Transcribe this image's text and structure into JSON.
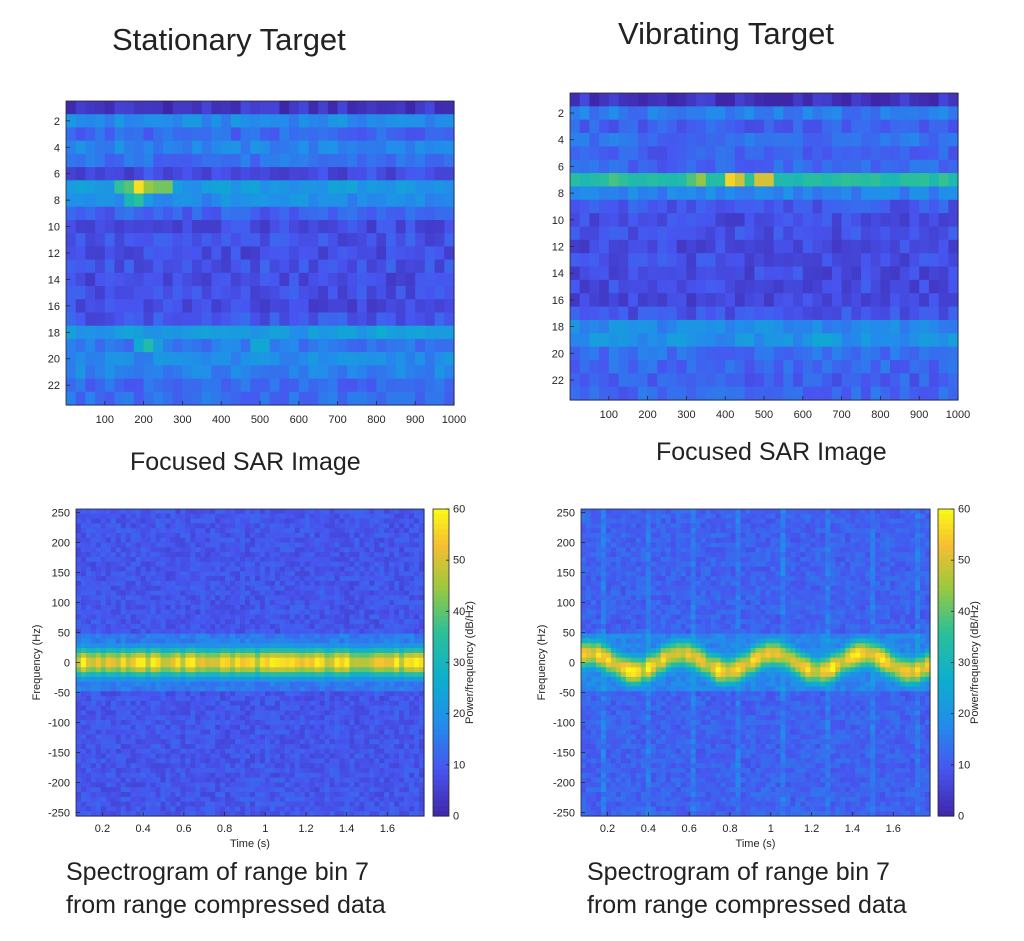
{
  "labels": {
    "left_title": "Stationary Target",
    "right_title": "Vibrating Target",
    "left_sar_caption": "Focused SAR Image",
    "right_sar_caption": "Focused SAR Image",
    "left_spec_caption_line1": "Spectrogram of range bin 7",
    "left_spec_caption_line2": "from range compressed data",
    "right_spec_caption_line1": "Spectrogram of range bin 7",
    "right_spec_caption_line2": "from range compressed data"
  },
  "colors": {
    "parula_low": "#3e26a8",
    "parula_mid": "#2db8a9",
    "parula_high": "#f9fb15"
  },
  "chart_data": [
    {
      "id": "sar-stationary",
      "type": "heatmap",
      "title": "Stationary Target",
      "xlim": [
        0,
        1000
      ],
      "ylim": [
        0.5,
        23.5
      ],
      "xticks": [
        100,
        200,
        300,
        400,
        500,
        600,
        700,
        800,
        900,
        1000
      ],
      "yticks": [
        2,
        4,
        6,
        8,
        10,
        12,
        14,
        16,
        18,
        20,
        22
      ],
      "rows": 23,
      "colorscale": "parula",
      "row_intensity": [
        0.05,
        0.3,
        0.2,
        0.28,
        0.22,
        0.12,
        0.35,
        0.3,
        0.18,
        0.12,
        0.14,
        0.12,
        0.14,
        0.12,
        0.13,
        0.12,
        0.15,
        0.35,
        0.25,
        0.3,
        0.28,
        0.2,
        0.22
      ],
      "peaks": [
        {
          "row": 7,
          "x": 190,
          "value": 0.95
        },
        {
          "row": 7,
          "x": 250,
          "value": 0.75
        },
        {
          "row": 7,
          "x": 150,
          "value": 0.65
        },
        {
          "row": 8,
          "x": 180,
          "value": 0.6
        },
        {
          "row": 19,
          "x": 210,
          "value": 0.55
        },
        {
          "row": 19,
          "x": 500,
          "value": 0.45
        },
        {
          "row": 18,
          "x": 820,
          "value": 0.45
        }
      ]
    },
    {
      "id": "sar-vibrating",
      "type": "heatmap",
      "title": "Vibrating Target",
      "xlim": [
        0,
        1000
      ],
      "ylim": [
        0.5,
        23.5
      ],
      "xticks": [
        100,
        200,
        300,
        400,
        500,
        600,
        700,
        800,
        900,
        1000
      ],
      "yticks": [
        2,
        4,
        6,
        8,
        10,
        12,
        14,
        16,
        18,
        20,
        22
      ],
      "rows": 23,
      "colorscale": "parula",
      "row_intensity": [
        0.05,
        0.25,
        0.18,
        0.22,
        0.18,
        0.2,
        0.55,
        0.28,
        0.16,
        0.12,
        0.13,
        0.11,
        0.13,
        0.12,
        0.12,
        0.11,
        0.14,
        0.3,
        0.32,
        0.22,
        0.2,
        0.18,
        0.2
      ],
      "peaks": [
        {
          "row": 7,
          "x": 420,
          "value": 0.95
        },
        {
          "row": 7,
          "x": 500,
          "value": 0.9
        },
        {
          "row": 7,
          "x": 330,
          "value": 0.75
        },
        {
          "row": 7,
          "x": 120,
          "value": 0.65
        },
        {
          "row": 7,
          "x": 880,
          "value": 0.6
        },
        {
          "row": 19,
          "x": 650,
          "value": 0.45
        }
      ]
    },
    {
      "id": "spec-stationary",
      "type": "heatmap",
      "xlabel": "Time (s)",
      "ylabel": "Frequency (Hz)",
      "colorbar_label": "Power/frequency (dB/Hz)",
      "xlim": [
        0.07,
        1.78
      ],
      "ylim": [
        -256,
        256
      ],
      "xticks": [
        0.2,
        0.4,
        0.6,
        0.8,
        1,
        1.2,
        1.4,
        1.6
      ],
      "yticks": [
        250,
        200,
        150,
        100,
        50,
        0,
        -50,
        -100,
        -150,
        -200,
        -250
      ],
      "clim": [
        0,
        60
      ],
      "cticks": [
        0,
        10,
        20,
        30,
        40,
        50,
        60
      ],
      "ridge": {
        "freq_hz": 0,
        "peak_db": 55,
        "width_hz": 25,
        "wobble_hz": 0
      },
      "background_db": 6
    },
    {
      "id": "spec-vibrating",
      "type": "heatmap",
      "xlabel": "Time (s)",
      "ylabel": "Frequency (Hz)",
      "colorbar_label": "Power/frequency (dB/Hz)",
      "xlim": [
        0.07,
        1.78
      ],
      "ylim": [
        -256,
        256
      ],
      "xticks": [
        0.2,
        0.4,
        0.6,
        0.8,
        1,
        1.2,
        1.4,
        1.6
      ],
      "yticks": [
        250,
        200,
        150,
        100,
        50,
        0,
        -50,
        -100,
        -150,
        -200,
        -250
      ],
      "clim": [
        0,
        60
      ],
      "cticks": [
        0,
        10,
        20,
        30,
        40,
        50,
        60
      ],
      "ridge": {
        "freq_hz": 0,
        "peak_db": 55,
        "width_hz": 25,
        "wobble_hz": 15
      },
      "background_db": 8
    }
  ]
}
